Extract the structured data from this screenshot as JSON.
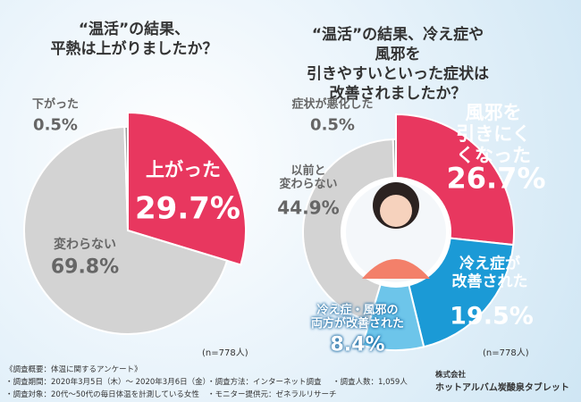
{
  "chart_data": [
    {
      "type": "pie",
      "title": "“温活”の結果、\n平熱は上がりましたか？",
      "categories": [
        "上がった",
        "変わらない",
        "下がった"
      ],
      "values": [
        29.7,
        69.8,
        0.5
      ],
      "value_labels": [
        "29.7%",
        "69.8%",
        "0.5%"
      ],
      "colors": [
        "#e8375f",
        "#d3d3d3",
        "#9c9c9c"
      ],
      "highlight": [
        true,
        false,
        false
      ],
      "note": "(n=778人)"
    },
    {
      "type": "pie",
      "title": "“温活”の結果、冷え症や風邪を\n引きやすいといった症状は\n改善されましたか？",
      "categories": [
        "風邪を\n引きにくくなった",
        "冷え症が\n改善された",
        "冷え症・風邪の\n両方が改善された",
        "以前と\n変わらない",
        "症状が悪化した"
      ],
      "values": [
        26.7,
        19.5,
        8.4,
        44.9,
        0.5
      ],
      "value_labels": [
        "26.7%",
        "19.5%",
        "8.4%",
        "44.9%",
        "0.5%"
      ],
      "colors": [
        "#e8375f",
        "#1b9ad6",
        "#6dc5ea",
        "#d3d3d3",
        "#9c9c9c"
      ],
      "highlight": [
        true,
        true,
        true,
        false,
        false
      ],
      "note": "(n=778人)"
    }
  ],
  "footer": {
    "heading": "《調査概要：体温に関するアンケート》",
    "items": [
      "・調査期間：2020年3月5日（木）～ 2020年3月6日（金）",
      "・調査対象：20代～50代の毎日体温を計測している女性",
      "・調査方法：インターネット調査",
      "・モニター提供元：ゼネラルリサーチ",
      "・調査人数：1,059人"
    ],
    "company": "株式会社",
    "brand": "ホットアルバム炭酸泉タブレット"
  }
}
